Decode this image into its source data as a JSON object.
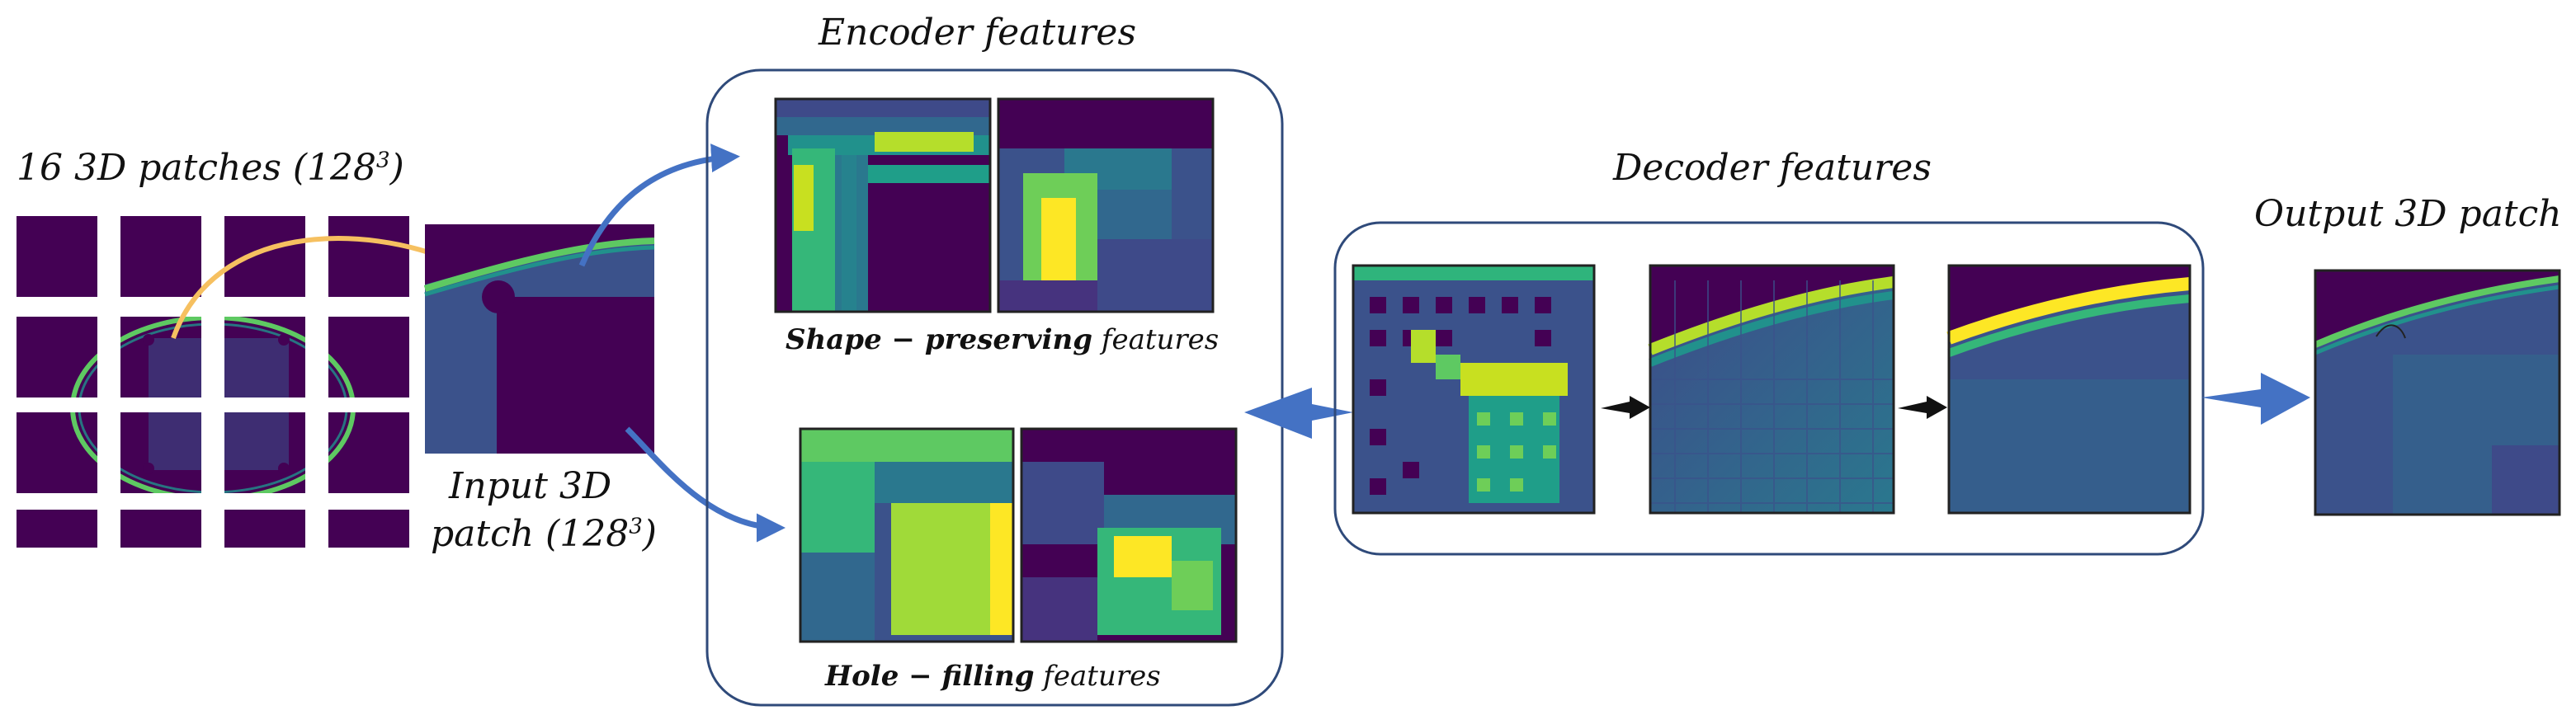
{
  "labels": {
    "patches_title_prefix": "16 3D patches (128",
    "patches_title_sup": "3",
    "patches_title_suffix": ")",
    "input_line1": "Input 3D",
    "input_line2_prefix": "patch (128",
    "input_line2_sup": "3",
    "input_line2_suffix": ")",
    "encoder_title": "Encoder features",
    "decoder_title": "Decoder features",
    "output_title": "Output 3D patch",
    "shape_bold": "Shape − preserving",
    "shape_rest": "features",
    "hole_bold": "Hole − filling",
    "hole_rest": "features"
  },
  "colors": {
    "viridis_dark": "#440154",
    "viridis_blue": "#31688e",
    "viridis_teal": "#21918c",
    "viridis_green": "#5ec962",
    "viridis_yellow": "#fde725",
    "arrow_blue": "#4472c4",
    "arrow_orange": "#f6c060",
    "box_border": "#2f4a7a"
  }
}
